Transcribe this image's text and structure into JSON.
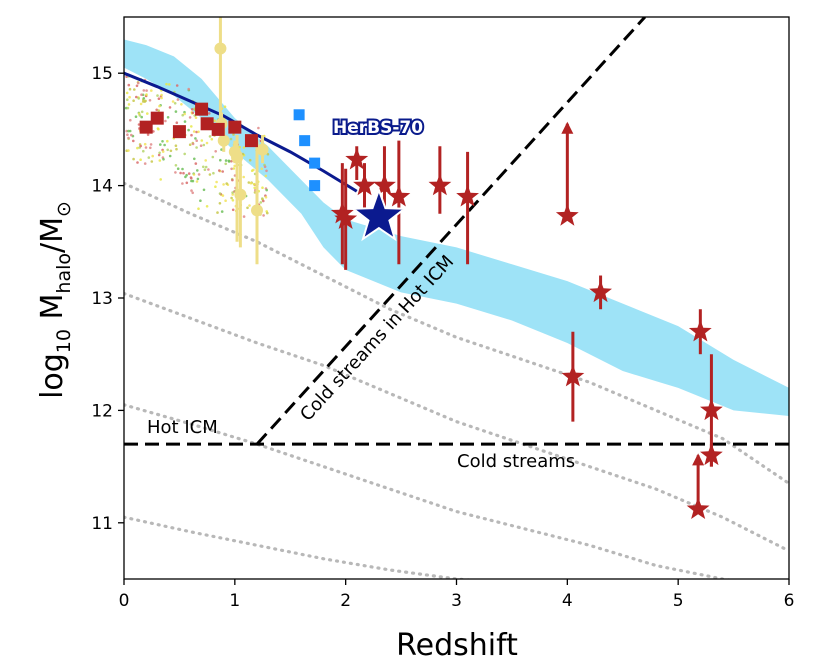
{
  "chart_data": {
    "type": "scatter",
    "xlabel": "Redshift",
    "ylabel_main": "log",
    "ylabel_sub1": "10",
    "ylabel_mid": " M",
    "ylabel_sub2": "halo",
    "ylabel_end": "/M",
    "ylabel_sun": "⊙",
    "xlim": [
      0,
      6
    ],
    "ylim": [
      10.5,
      15.5
    ],
    "x_ticks": [
      0,
      1,
      2,
      3,
      4,
      5,
      6
    ],
    "y_ticks": [
      11,
      12,
      13,
      14,
      15
    ],
    "x_tick_labels": [
      "0",
      "1",
      "2",
      "3",
      "4",
      "5",
      "6"
    ],
    "y_tick_labels": [
      "11",
      "12",
      "13",
      "14",
      "15"
    ],
    "annotations": {
      "hot_icm": "Hot ICM",
      "cold_streams": "Cold streams",
      "cold_in_hot": "Cold streams in Hot ICM",
      "highlight_label": "HerBS-70"
    },
    "colors": {
      "band": "#9ee3f7",
      "navy_line": "#0b1a8f",
      "red": "#b22222",
      "yellow": "#eede88",
      "blue_square": "#1e90ff",
      "dotted": "#b8b8b8"
    },
    "threshold_horizontal": {
      "y": 11.7,
      "x_range": [
        0,
        6
      ]
    },
    "threshold_diagonal": {
      "points": [
        [
          1.2,
          11.7
        ],
        [
          4.7,
          15.5
        ]
      ]
    },
    "cyan_band": {
      "x": [
        0,
        0.2,
        0.45,
        0.7,
        1.0,
        1.3,
        1.6,
        1.8,
        2.0,
        2.5,
        3.0,
        3.5,
        4.0,
        4.5,
        5.0,
        5.5,
        6.0
      ],
      "upper": [
        15.3,
        15.25,
        15.15,
        14.95,
        14.6,
        14.35,
        14.05,
        13.85,
        13.7,
        13.55,
        13.45,
        13.3,
        13.15,
        12.95,
        12.75,
        12.45,
        12.2
      ],
      "lower": [
        15.05,
        14.95,
        14.8,
        14.6,
        14.3,
        14.05,
        13.75,
        13.45,
        13.25,
        13.05,
        12.95,
        12.8,
        12.6,
        12.35,
        12.2,
        12.0,
        11.95
      ]
    },
    "navy_line": {
      "x": [
        0,
        0.3,
        0.6,
        0.9,
        1.2,
        1.5,
        1.8,
        2.1
      ],
      "y": [
        15.0,
        14.88,
        14.75,
        14.62,
        14.45,
        14.3,
        14.13,
        13.95
      ]
    },
    "dotted_tracks": [
      {
        "x": [
          0,
          0.6,
          1.2,
          1.8,
          2.4,
          3.0,
          3.6,
          4.2,
          4.8,
          5.4,
          6.0
        ],
        "y": [
          14.02,
          13.75,
          13.5,
          13.2,
          12.9,
          12.65,
          12.45,
          12.25,
          12.0,
          11.75,
          11.35
        ]
      },
      {
        "x": [
          0,
          0.6,
          1.2,
          1.8,
          2.4,
          3.0,
          3.6,
          4.2,
          4.8,
          5.4,
          6.0
        ],
        "y": [
          13.04,
          12.82,
          12.6,
          12.4,
          12.15,
          11.9,
          11.7,
          11.5,
          11.3,
          11.05,
          10.75
        ]
      },
      {
        "x": [
          0,
          0.6,
          1.2,
          1.8,
          2.4,
          3.0,
          3.6,
          4.2,
          4.8,
          5.4,
          6.0
        ],
        "y": [
          12.05,
          11.88,
          11.7,
          11.5,
          11.3,
          11.1,
          10.95,
          10.8,
          10.62,
          10.5,
          10.4
        ]
      },
      {
        "x": [
          0,
          0.6,
          1.2,
          1.8,
          2.4,
          3.0,
          3.6,
          4.2,
          4.8
        ],
        "y": [
          11.05,
          10.92,
          10.8,
          10.68,
          10.58,
          10.5,
          10.45,
          10.42,
          10.4
        ]
      }
    ],
    "red_squares": [
      {
        "x": 0.2,
        "y": 14.52
      },
      {
        "x": 0.3,
        "y": 14.6
      },
      {
        "x": 0.5,
        "y": 14.48
      },
      {
        "x": 0.7,
        "y": 14.68
      },
      {
        "x": 0.75,
        "y": 14.55
      },
      {
        "x": 0.85,
        "y": 14.5
      },
      {
        "x": 1.0,
        "y": 14.52
      },
      {
        "x": 1.15,
        "y": 14.4
      }
    ],
    "yellow_points": [
      {
        "x": 0.87,
        "y": 15.22,
        "lo": 14.55,
        "hi": 15.5
      },
      {
        "x": 0.88,
        "y": 14.55,
        "lo": 14.45,
        "hi": 14.65
      },
      {
        "x": 0.9,
        "y": 14.4,
        "lo": 14.3,
        "hi": 14.5
      },
      {
        "x": 1.0,
        "y": 14.3,
        "lo": 14.2,
        "hi": 14.4
      },
      {
        "x": 1.02,
        "y": 14.25,
        "lo": 13.5,
        "hi": 14.45
      },
      {
        "x": 1.05,
        "y": 13.92,
        "lo": 13.45,
        "hi": 14.3
      },
      {
        "x": 1.2,
        "y": 13.78,
        "lo": 13.3,
        "hi": 14.4
      },
      {
        "x": 1.25,
        "y": 14.32,
        "lo": 14.2,
        "hi": 14.45
      }
    ],
    "blue_squares": [
      {
        "x": 1.58,
        "y": 14.63
      },
      {
        "x": 1.63,
        "y": 14.4
      },
      {
        "x": 1.72,
        "y": 14.2
      },
      {
        "x": 1.72,
        "y": 14.0
      }
    ],
    "red_stars": [
      {
        "x": 1.97,
        "y": 13.75,
        "lo": 13.3,
        "hi": 14.2
      },
      {
        "x": 2.0,
        "y": 13.7,
        "lo": 13.25,
        "hi": 14.15
      },
      {
        "x": 2.1,
        "y": 14.23,
        "lo": 14.05,
        "hi": 14.35
      },
      {
        "x": 2.17,
        "y": 14.0,
        "lo": 13.8,
        "hi": 14.2
      },
      {
        "x": 2.35,
        "y": 14.0,
        "lo": 13.6,
        "hi": 14.35
      },
      {
        "x": 2.48,
        "y": 13.9,
        "lo": 13.3,
        "hi": 14.4
      },
      {
        "x": 2.85,
        "y": 14.0,
        "lo": 13.75,
        "hi": 14.35
      },
      {
        "x": 3.1,
        "y": 13.9,
        "lo": 13.3,
        "hi": 14.3
      },
      {
        "x": 4.0,
        "y": 13.73,
        "lo": 13.73,
        "hi": 14.55,
        "arrow": "up"
      },
      {
        "x": 4.3,
        "y": 13.05,
        "lo": 12.9,
        "hi": 13.2
      },
      {
        "x": 4.05,
        "y": 12.3,
        "lo": 11.9,
        "hi": 12.7
      },
      {
        "x": 5.2,
        "y": 12.7,
        "lo": 12.5,
        "hi": 12.9
      },
      {
        "x": 5.3,
        "y": 12.0,
        "lo": 11.5,
        "hi": 12.5
      },
      {
        "x": 5.3,
        "y": 11.6,
        "lo": 11.5,
        "hi": 11.7
      },
      {
        "x": 5.18,
        "y": 11.12,
        "lo": 11.12,
        "hi": 11.6,
        "arrow": "up"
      }
    ],
    "highlight_star": {
      "label": "HerBS-70",
      "x": 2.3,
      "y": 13.72
    }
  }
}
